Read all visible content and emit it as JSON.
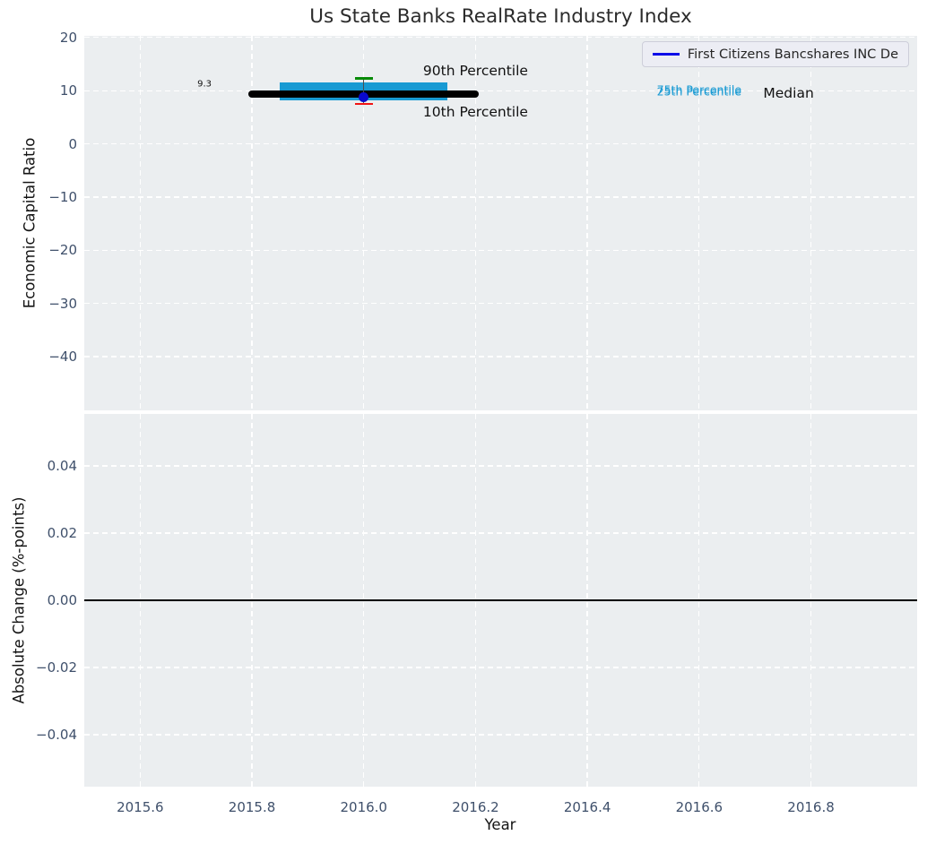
{
  "figure": {
    "title": "Us State Banks RealRate Industry Index",
    "xlabel": "Year",
    "legend": {
      "entries": [
        {
          "label": "First Citizens Bancshares INC De",
          "color": "#0d0de8"
        }
      ]
    }
  },
  "colors": {
    "plot_bg": "#ebeef0",
    "grid": "#ffffff",
    "tick_label": "#3f506b",
    "axis_label": "#141414",
    "title": "#2b2b2b",
    "band": "#189ad3",
    "median": "#000000",
    "err_line": "#4d4d4d",
    "cap_high": "#078a07",
    "cap_low": "#f01414",
    "point": "#0909cc",
    "zero_line": "#000000",
    "legend_bg": "#ecedf4",
    "legend_border": "#cdced9",
    "series_blue": "#0d0de8",
    "percentile_text": "#189ad3",
    "annotation": "#111111"
  },
  "chart_data": [
    {
      "id": "top",
      "type": "line",
      "title": "Us State Banks RealRate Industry Index",
      "ylabel": "Economic Capital Ratio",
      "xlim": [
        2015.5,
        2016.99
      ],
      "ylim": [
        -50.1,
        20.3
      ],
      "grid": "white dashed",
      "legend_position": "upper right",
      "xticks": [
        2015.6,
        2015.8,
        2016.0,
        2016.2,
        2016.4,
        2016.6,
        2016.8
      ],
      "yticks": [
        20,
        10,
        0,
        -10,
        -20,
        -30,
        -40
      ],
      "ytick_labels": [
        "20",
        "10",
        "0",
        "−10",
        "−20",
        "−30",
        "−40"
      ],
      "series": [
        {
          "name": "Median",
          "value": 9.3,
          "x_start": 2015.8,
          "x_end": 2016.2
        },
        {
          "name": "25th-75th Percentile band",
          "y_low": 8.1,
          "y_high": 11.6,
          "x_start": 2015.85,
          "x_end": 2016.15
        },
        {
          "name": "First Citizens Bancshares INC De",
          "x": 2016.0,
          "y": 8.7,
          "whisker_high": 12.3,
          "whisker_low": 7.5
        }
      ],
      "elements": [
        {
          "kind": "band",
          "name": "percentile-band-25-75",
          "x0": 2015.85,
          "x1": 2016.15,
          "y0": 8.1,
          "y1": 11.6,
          "color_key": "band"
        },
        {
          "kind": "hline",
          "name": "median-line",
          "y": 9.3,
          "x0": 2015.8,
          "x1": 2016.2,
          "lw": 8,
          "cap": "round",
          "color_key": "median"
        },
        {
          "kind": "errorbar",
          "name": "company-errorbar",
          "x": 2016.0,
          "low": 7.5,
          "high": 12.3,
          "cap_width": 20,
          "color_key": "err_line",
          "cap_high_key": "cap_high",
          "cap_low_key": "cap_low"
        },
        {
          "kind": "point",
          "name": "company-point",
          "x": 2016.0,
          "y": 8.7,
          "r": 5.5,
          "color_key": "point"
        }
      ],
      "annotations": [
        {
          "name": "median-value-label",
          "text": "9.3",
          "x": 2015.715,
          "y": 11.2,
          "size": 10,
          "color_key": "annotation"
        },
        {
          "name": "annotation-90th-percentile",
          "text": "90th Percentile",
          "x": 2016.2,
          "y": 13.8,
          "size": 15.5,
          "color_key": "annotation"
        },
        {
          "name": "annotation-10th-percentile",
          "text": "10th Percentile",
          "x": 2016.2,
          "y": 6.0,
          "size": 15.5,
          "color_key": "annotation"
        },
        {
          "name": "annotation-75th-percentile",
          "text": "75th Percentile",
          "x": 2016.6,
          "y": 10.15,
          "size": 12.5,
          "color_key": "percentile_text"
        },
        {
          "name": "annotation-25th-percentile",
          "text": "25th Percentile",
          "x": 2016.6,
          "y": 9.9,
          "size": 12.5,
          "color_key": "percentile_text"
        },
        {
          "name": "annotation-median",
          "text": "Median",
          "x": 2016.76,
          "y": 9.5,
          "size": 15.5,
          "color_key": "annotation"
        }
      ]
    },
    {
      "id": "bottom",
      "type": "line",
      "ylabel": "Absolute Change (%-points)",
      "xlabel": "Year",
      "xlim": [
        2015.5,
        2016.99
      ],
      "ylim": [
        -0.0555,
        0.0555
      ],
      "grid": "white dashed",
      "xticks": [
        2015.6,
        2015.8,
        2016.0,
        2016.2,
        2016.4,
        2016.6,
        2016.8
      ],
      "xtick_labels": [
        "2015.6",
        "2015.8",
        "2016.0",
        "2016.2",
        "2016.4",
        "2016.6",
        "2016.8"
      ],
      "yticks": [
        0.04,
        0.02,
        0.0,
        -0.02,
        -0.04
      ],
      "ytick_labels": [
        "0.04",
        "0.02",
        "0.00",
        "−0.02",
        "−0.04"
      ],
      "series": [],
      "elements": [
        {
          "kind": "hline",
          "name": "zero-line",
          "y": 0,
          "x0": 2015.5,
          "x1": 2016.99,
          "lw": 2.5,
          "cap": "butt",
          "color_key": "zero_line"
        }
      ],
      "annotations": []
    }
  ]
}
